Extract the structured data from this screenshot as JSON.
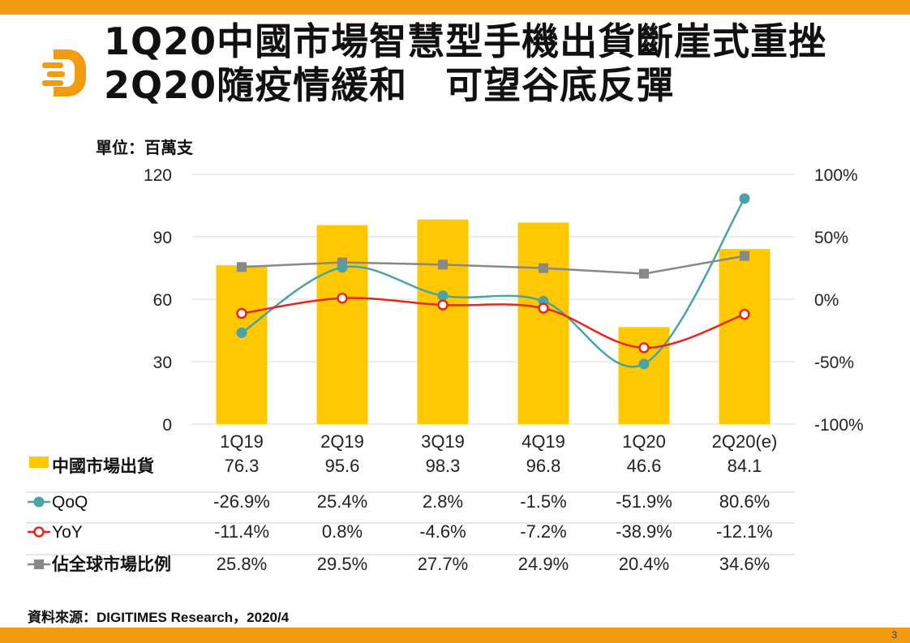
{
  "title": {
    "line1": "1Q20中國市場智慧型手機出貨斷崖式重挫",
    "line2": "2Q20隨疫情緩和　可望谷底反彈"
  },
  "unit": "單位：百萬支",
  "source": "資料來源：DIGITIMES Research，2020/4",
  "page_number": "3",
  "colors": {
    "accent_bar": "#f39c12",
    "bars": "#ffc800",
    "qoq": "#4aa3a6",
    "yoy": "#e8261b",
    "share": "#888888"
  },
  "chart_data": {
    "type": "bar",
    "categories": [
      "1Q19",
      "2Q19",
      "3Q19",
      "4Q19",
      "1Q20",
      "2Q20(e)"
    ],
    "ylim": [
      0,
      120
    ],
    "yticks": [
      "0",
      "30",
      "60",
      "90",
      "120"
    ],
    "y2lim": [
      -100,
      100
    ],
    "y2ticks": [
      "-100%",
      "-50%",
      "0%",
      "50%",
      "100%"
    ],
    "grid": true,
    "series": [
      {
        "name": "中國市場出貨",
        "type": "bar",
        "axis": "left",
        "values": [
          76.3,
          95.6,
          98.3,
          96.8,
          46.6,
          84.1
        ],
        "labels": [
          "76.3",
          "95.6",
          "98.3",
          "96.8",
          "46.6",
          "84.1"
        ]
      },
      {
        "name": "QoQ",
        "type": "line",
        "axis": "right",
        "values": [
          -26.9,
          25.4,
          2.8,
          -1.5,
          -51.9,
          80.6
        ],
        "labels": [
          "-26.9%",
          "25.4%",
          "2.8%",
          "-1.5%",
          "-51.9%",
          "80.6%"
        ]
      },
      {
        "name": "YoY",
        "type": "line",
        "axis": "right",
        "values": [
          -11.4,
          0.8,
          -4.6,
          -7.2,
          -38.9,
          -12.1
        ],
        "labels": [
          "-11.4%",
          "0.8%",
          "-4.6%",
          "-7.2%",
          "-38.9%",
          "-12.1%"
        ]
      },
      {
        "name": "佔全球市場比例",
        "type": "line",
        "axis": "right",
        "values": [
          25.8,
          29.5,
          27.7,
          24.9,
          20.4,
          34.6
        ],
        "labels": [
          "25.8%",
          "29.5%",
          "27.7%",
          "24.9%",
          "20.4%",
          "34.6%"
        ]
      }
    ]
  }
}
